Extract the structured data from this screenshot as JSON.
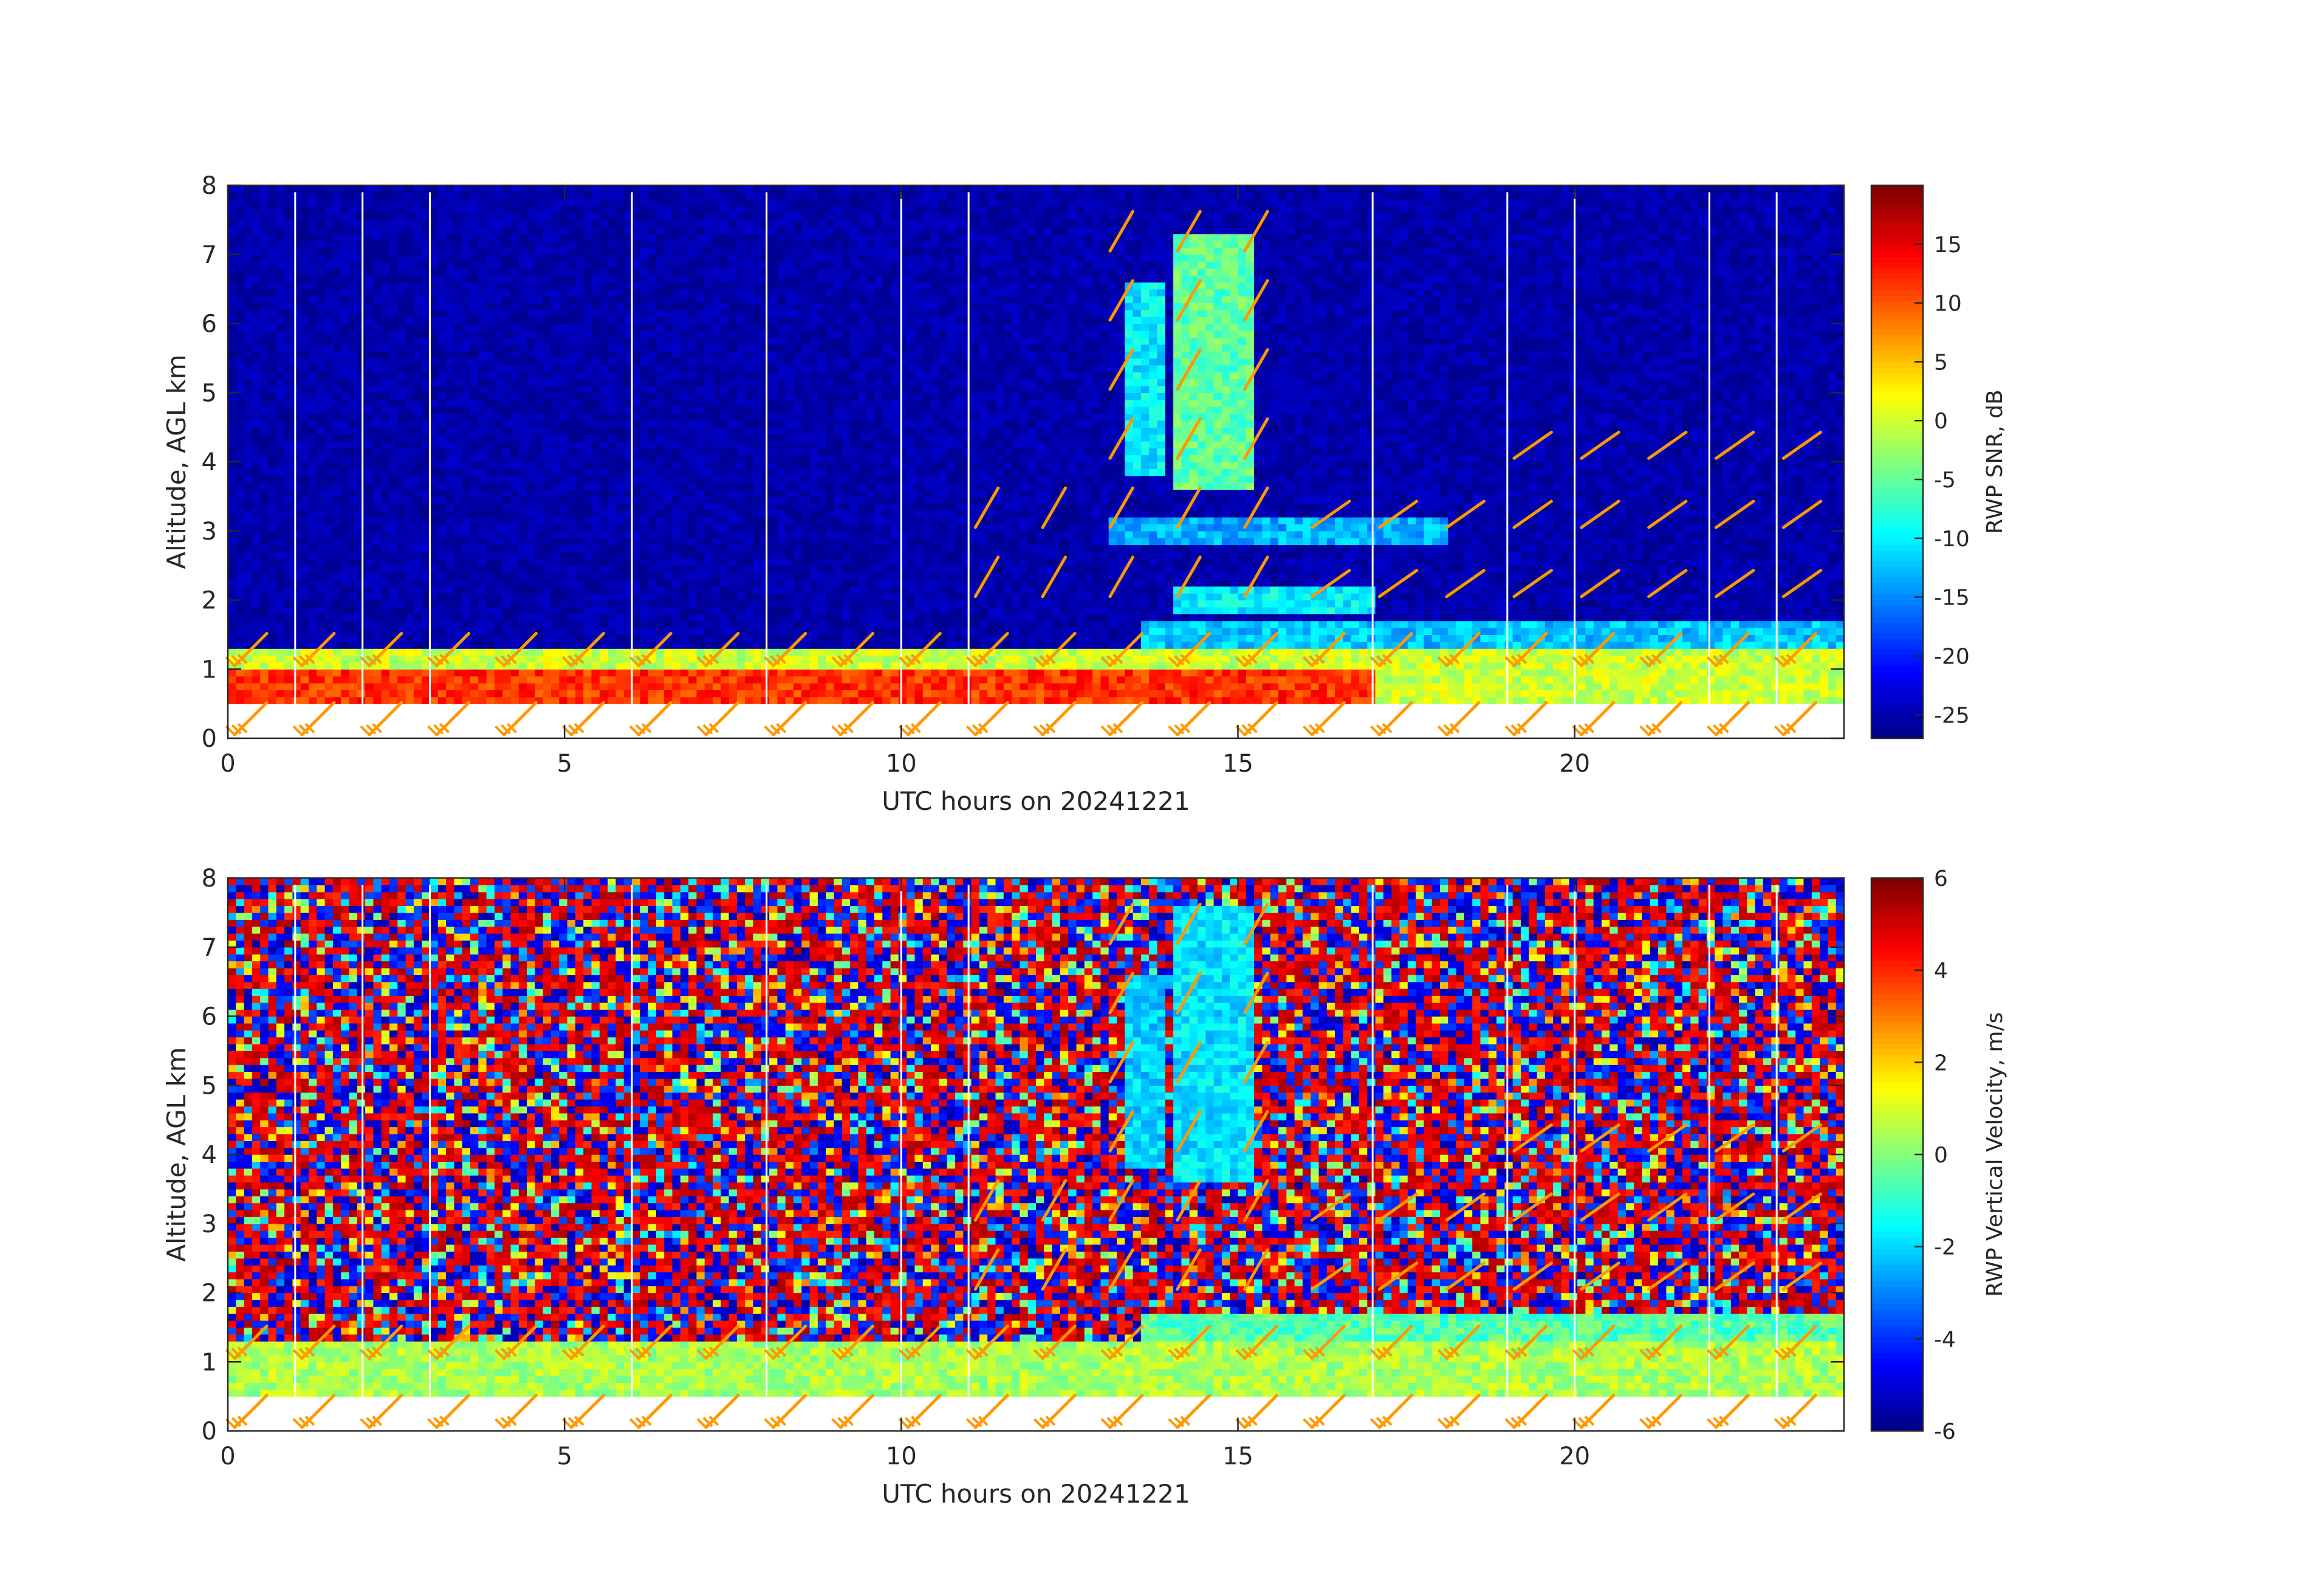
{
  "chart_data": [
    {
      "type": "heatmap",
      "title": "",
      "xlabel": "UTC hours on 20241221",
      "ylabel": "Altitude, AGL km",
      "xlim": [
        0,
        24
      ],
      "ylim": [
        0,
        8
      ],
      "x_ticks": [
        "0",
        "5",
        "10",
        "15",
        "20"
      ],
      "y_ticks": [
        "0",
        "1",
        "2",
        "3",
        "4",
        "5",
        "6",
        "7",
        "8"
      ],
      "colorbar": {
        "label": "RWP SNR, dB",
        "range": [
          -27,
          20
        ],
        "ticks": [
          "15",
          "10",
          "5",
          "0",
          "-5",
          "-10",
          "-15",
          "-20",
          "-25"
        ]
      },
      "data_coverage_altitude_km": [
        0.5,
        7.9
      ],
      "layers": [
        {
          "feature": "boundary layer echo",
          "t_start": 0,
          "t_end": 24,
          "alt_bottom": 0.5,
          "alt_top": 1.3,
          "snr_db": 0
        },
        {
          "feature": "strong bright band",
          "t_start": 0,
          "t_end": 17,
          "alt_bottom": 0.5,
          "alt_top": 0.9,
          "snr_db": 12
        },
        {
          "feature": "elevated layer",
          "t_start": 13.5,
          "t_end": 24,
          "alt_bottom": 1.3,
          "alt_top": 1.7,
          "snr_db": -12
        },
        {
          "feature": "sloping layer",
          "t_start": 14,
          "t_end": 17,
          "alt_bottom": 1.8,
          "alt_top": 2.2,
          "snr_db": -10
        },
        {
          "feature": "layer",
          "t_start": 13,
          "t_end": 18,
          "alt_bottom": 2.8,
          "alt_top": 3.2,
          "snr_db": -13
        },
        {
          "feature": "fall streak",
          "t_start": 14.0,
          "t_end": 15.2,
          "alt_bottom": 3.6,
          "alt_top": 7.2,
          "snr_db": -5
        },
        {
          "feature": "fall streak",
          "t_start": 13.2,
          "t_end": 13.8,
          "alt_bottom": 3.8,
          "alt_top": 6.5,
          "snr_db": -10
        }
      ],
      "background_snr_db": -25,
      "gap_times_h": [
        1,
        2,
        3,
        6,
        8,
        10,
        11,
        17,
        19,
        20,
        22,
        23
      ],
      "wind_barb_times_h": [
        0,
        1,
        2,
        3,
        4,
        5,
        6,
        7,
        8,
        9,
        10,
        11,
        12,
        13,
        14,
        15,
        16,
        17,
        18,
        19,
        20,
        21,
        22,
        23
      ],
      "wind_barb_altitudes_km": [
        0,
        1,
        2,
        3,
        4,
        5,
        6,
        7
      ],
      "wind_barb_color": "#ff9900"
    },
    {
      "type": "heatmap",
      "title": "",
      "xlabel": "UTC hours on 20241221",
      "ylabel": "Altitude, AGL km",
      "xlim": [
        0,
        24
      ],
      "ylim": [
        0,
        8
      ],
      "x_ticks": [
        "0",
        "5",
        "10",
        "15",
        "20"
      ],
      "y_ticks": [
        "0",
        "1",
        "2",
        "3",
        "4",
        "5",
        "6",
        "7",
        "8"
      ],
      "colorbar": {
        "label": "RWP Vertical Velocity, m/s",
        "range": [
          -6,
          6
        ],
        "ticks": [
          "6",
          "4",
          "2",
          "0",
          "-2",
          "-4",
          "-6"
        ]
      },
      "data_coverage_altitude_km": [
        0.5,
        7.9
      ],
      "layers": [
        {
          "feature": "boundary layer",
          "t_start": 0,
          "t_end": 24,
          "alt_bottom": 0.5,
          "alt_top": 1.3,
          "velocity_ms": 0.5
        },
        {
          "feature": "elevated layer",
          "t_start": 13.5,
          "t_end": 24,
          "alt_bottom": 1.3,
          "alt_top": 1.7,
          "velocity_ms": -0.5
        },
        {
          "feature": "fall streak",
          "t_start": 14.0,
          "t_end": 15.2,
          "alt_bottom": 3.6,
          "alt_top": 7.5,
          "velocity_ms": -1.8
        },
        {
          "feature": "fall streak",
          "t_start": 13.2,
          "t_end": 13.8,
          "alt_bottom": 3.8,
          "alt_top": 6.5,
          "velocity_ms": -2.0
        }
      ],
      "background": "noise (random velocities)",
      "gap_times_h": [
        1,
        2,
        3,
        6,
        8,
        10,
        11,
        17,
        19,
        20,
        22,
        23
      ],
      "wind_barb_color": "#ff9900"
    }
  ],
  "colors": {
    "wind_barb": "#ff9900",
    "axes": "#262626",
    "gap_lines": "#ffffff"
  }
}
